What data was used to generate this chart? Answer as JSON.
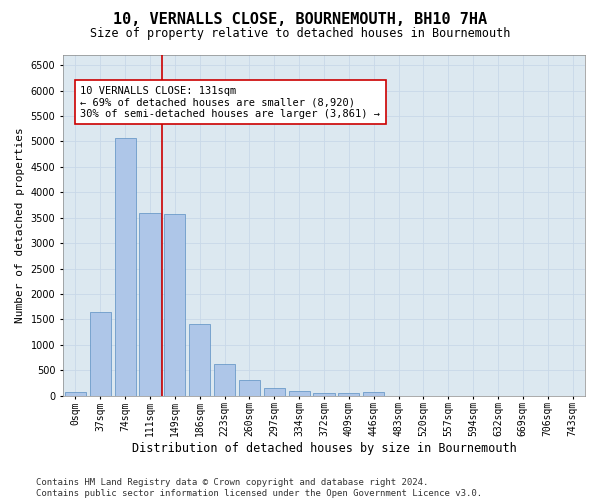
{
  "title": "10, VERNALLS CLOSE, BOURNEMOUTH, BH10 7HA",
  "subtitle": "Size of property relative to detached houses in Bournemouth",
  "xlabel": "Distribution of detached houses by size in Bournemouth",
  "ylabel": "Number of detached properties",
  "bar_labels": [
    "0sqm",
    "37sqm",
    "74sqm",
    "111sqm",
    "149sqm",
    "186sqm",
    "223sqm",
    "260sqm",
    "297sqm",
    "334sqm",
    "372sqm",
    "409sqm",
    "446sqm",
    "483sqm",
    "520sqm",
    "557sqm",
    "594sqm",
    "632sqm",
    "669sqm",
    "706sqm",
    "743sqm"
  ],
  "bar_values": [
    75,
    1650,
    5075,
    3600,
    3575,
    1400,
    625,
    300,
    155,
    100,
    60,
    55,
    65,
    0,
    0,
    0,
    0,
    0,
    0,
    0,
    0
  ],
  "bar_color": "#aec6e8",
  "bar_edge_color": "#5a8fc2",
  "vline_color": "#cc0000",
  "annotation_text": "10 VERNALLS CLOSE: 131sqm\n← 69% of detached houses are smaller (8,920)\n30% of semi-detached houses are larger (3,861) →",
  "annotation_box_color": "white",
  "annotation_box_edge_color": "#cc0000",
  "ylim": [
    0,
    6700
  ],
  "yticks": [
    0,
    500,
    1000,
    1500,
    2000,
    2500,
    3000,
    3500,
    4000,
    4500,
    5000,
    5500,
    6000,
    6500
  ],
  "grid_color": "#c8d8e8",
  "background_color": "#dce8f0",
  "footer_line1": "Contains HM Land Registry data © Crown copyright and database right 2024.",
  "footer_line2": "Contains public sector information licensed under the Open Government Licence v3.0.",
  "title_fontsize": 11,
  "subtitle_fontsize": 8.5,
  "xlabel_fontsize": 8.5,
  "ylabel_fontsize": 8,
  "tick_fontsize": 7,
  "footer_fontsize": 6.5,
  "annotation_fontsize": 7.5
}
